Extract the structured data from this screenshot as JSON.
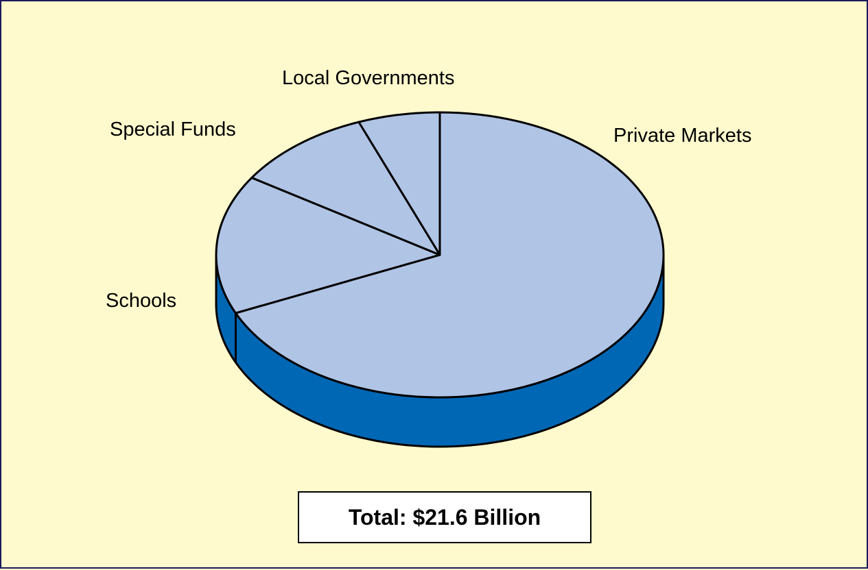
{
  "chart_data": {
    "type": "pie",
    "title": "",
    "three_d": true,
    "slices": [
      {
        "label": "Private Markets",
        "value": 68.3
      },
      {
        "label": "Schools",
        "value": 15.8
      },
      {
        "label": "Special Funds",
        "value": 10.0
      },
      {
        "label": "Local Governments",
        "value": 5.9
      }
    ],
    "total_label": "Total: $21.6 Billion",
    "colors": {
      "top": "#b0c4e5",
      "side": "#0067b5",
      "outline": "#000000",
      "background": "#fffacd",
      "frame": "#1a1a5c"
    }
  }
}
